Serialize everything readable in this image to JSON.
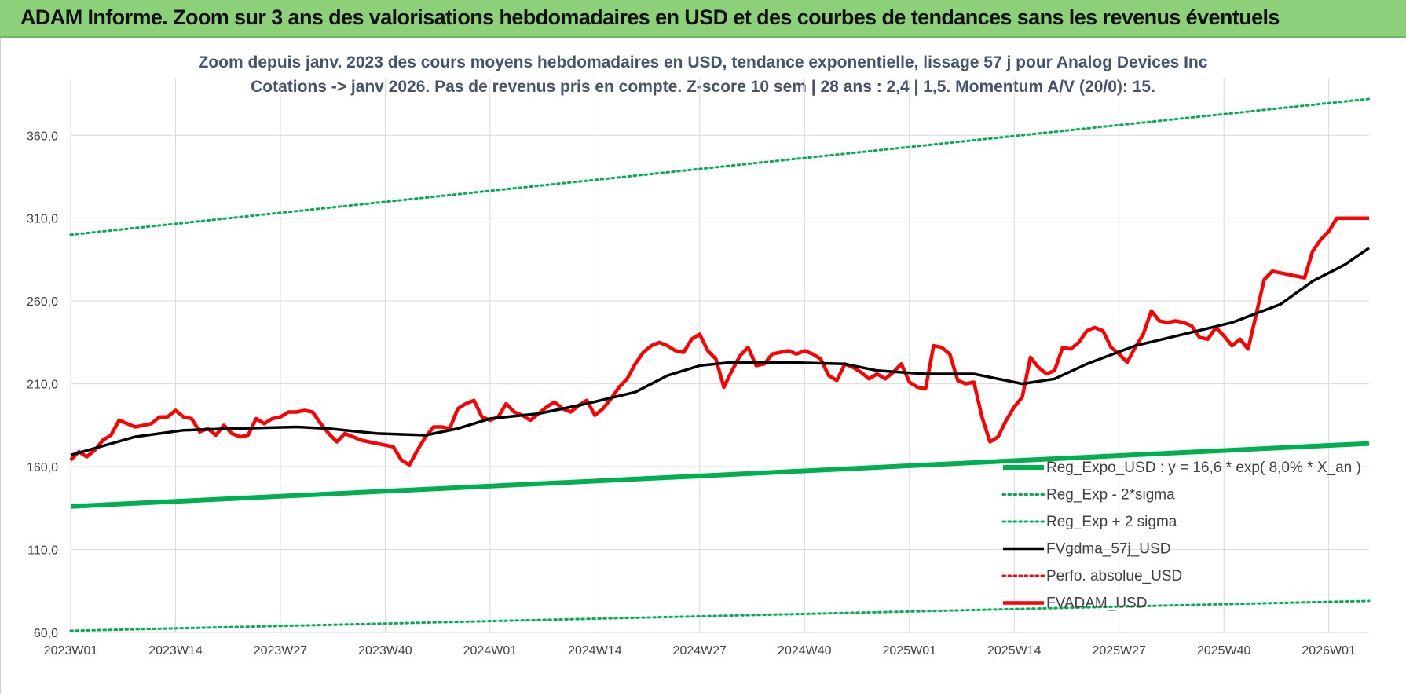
{
  "banner": {
    "title": "ADAM Informe. Zoom sur 3 ans des valorisations hebdomadaires en USD et des courbes de tendances sans les revenus éventuels"
  },
  "colors": {
    "banner": "#8dd07a",
    "reg_expo": "#00b050",
    "fv_adam": "#ff0000",
    "fvgdma": "#000000",
    "grid": "#d9d9d9"
  },
  "chart_data": {
    "type": "line",
    "title_line1": "Zoom depuis janv. 2023 des cours moyens hebdomadaires en USD, tendance exponentielle, lissage 57 j pour Analog Devices Inc",
    "title_line2": "Cotations -> janv 2026. Pas de revenus pris en compte. Z-score 10 sem | 28 ans : 2,4 | 1,5. Momentum A/V (20/0): 15.",
    "xlabel": "",
    "ylabel": "",
    "ylim": [
      60,
      390
    ],
    "y_ticks": [
      "60,0",
      "110,0",
      "160,0",
      "210,0",
      "260,0",
      "310,0",
      "360,0"
    ],
    "y_tick_values": [
      60,
      110,
      160,
      210,
      260,
      310,
      360
    ],
    "x_ticks": [
      "2023W01",
      "2023W14",
      "2023W27",
      "2023W40",
      "2024W01",
      "2024W14",
      "2024W27",
      "2024W40",
      "2025W01",
      "2025W14",
      "2025W27",
      "2025W40",
      "2026W01"
    ],
    "x_tick_index": [
      0,
      13,
      26,
      39,
      52,
      65,
      78,
      91,
      104,
      117,
      130,
      143,
      156
    ],
    "x_count": 162,
    "legend_position": "bottom-right",
    "series": [
      {
        "name": "Reg_Expo_USD : y = 16,6 * exp( 8,0% *  X_an )",
        "style": "solid-thick",
        "color": "#00b050",
        "x": [
          0,
          161
        ],
        "values": [
          136,
          174
        ]
      },
      {
        "name": "Reg_Exp - 2*sigma",
        "style": "dotted",
        "color": "#00b050",
        "x": [
          0,
          161
        ],
        "values": [
          61,
          79
        ]
      },
      {
        "name": "Reg_Exp + 2 sigma",
        "style": "dotted",
        "color": "#00b050",
        "x": [
          0,
          161
        ],
        "values": [
          300,
          382
        ]
      },
      {
        "name": "FVgdma_57j_USD",
        "style": "solid",
        "color": "#000000",
        "x": [
          0,
          8,
          14,
          20,
          28,
          32,
          38,
          44,
          48,
          52,
          58,
          64,
          70,
          74,
          78,
          82,
          88,
          96,
          100,
          106,
          112,
          116,
          118,
          122,
          126,
          132,
          138,
          144,
          150,
          154,
          158,
          161
        ],
        "values": [
          167,
          178,
          182,
          183,
          184,
          183,
          180,
          179,
          183,
          189,
          192,
          198,
          205,
          215,
          221,
          223,
          223,
          222,
          218,
          216,
          216,
          212,
          210,
          213,
          222,
          233,
          240,
          247,
          258,
          272,
          282,
          292
        ]
      },
      {
        "name": "Perfo. absolue_USD",
        "style": "dotted",
        "color": "#ff0000",
        "x": [],
        "values": []
      },
      {
        "name": "FVADAM_USD",
        "style": "solid-thick",
        "color": "#ff0000",
        "x": [
          0,
          1,
          2,
          3,
          4,
          5,
          6,
          7,
          8,
          9,
          10,
          11,
          12,
          13,
          14,
          15,
          16,
          17,
          18,
          19,
          20,
          21,
          22,
          23,
          24,
          25,
          26,
          27,
          28,
          29,
          30,
          31,
          32,
          33,
          34,
          35,
          36,
          37,
          38,
          39,
          40,
          41,
          42,
          43,
          44,
          45,
          46,
          47,
          48,
          49,
          50,
          51,
          52,
          53,
          54,
          55,
          56,
          57,
          58,
          59,
          60,
          61,
          62,
          63,
          64,
          65,
          66,
          67,
          68,
          69,
          70,
          71,
          72,
          73,
          74,
          75,
          76,
          77,
          78,
          79,
          80,
          81,
          82,
          83,
          84,
          85,
          86,
          87,
          88,
          89,
          90,
          91,
          92,
          93,
          94,
          95,
          96,
          97,
          98,
          99,
          100,
          101,
          102,
          103,
          104,
          105,
          106,
          107,
          108,
          109,
          110,
          111,
          112,
          113,
          114,
          115,
          116,
          117,
          118,
          119,
          120,
          121,
          122,
          123,
          124,
          125,
          126,
          127,
          128,
          129,
          130,
          131,
          132,
          133,
          134,
          135,
          136,
          137,
          138,
          139,
          140,
          141,
          142,
          143,
          144,
          145,
          146,
          147,
          148,
          149,
          150,
          151,
          152,
          153,
          154,
          155,
          156,
          157,
          158,
          159,
          160,
          161
        ],
        "values": [
          164,
          169,
          166,
          170,
          176,
          179,
          188,
          186,
          184,
          185,
          186,
          190,
          190,
          194,
          190,
          189,
          181,
          183,
          179,
          185,
          180,
          178,
          179,
          189,
          186,
          189,
          190,
          193,
          193,
          194,
          193,
          186,
          180,
          175,
          180,
          178,
          176,
          175,
          174,
          173,
          172,
          164,
          161,
          170,
          178,
          184,
          184,
          183,
          195,
          198,
          200,
          190,
          188,
          190,
          198,
          193,
          191,
          188,
          192,
          196,
          199,
          195,
          193,
          197,
          200,
          191,
          195,
          201,
          208,
          213,
          222,
          229,
          233,
          235,
          233,
          230,
          229,
          237,
          240,
          230,
          225,
          208,
          218,
          227,
          232,
          221,
          222,
          228,
          229,
          230,
          228,
          230,
          228,
          225,
          215,
          212,
          222,
          220,
          217,
          213,
          216,
          213,
          217,
          222,
          211,
          208,
          207,
          233,
          232,
          228,
          212,
          210,
          211,
          190,
          175,
          178,
          188,
          196,
          202,
          226,
          220,
          216,
          218,
          232,
          231,
          235,
          242,
          244,
          242,
          232,
          228,
          223,
          232,
          240,
          254,
          248,
          247,
          248,
          247,
          245,
          238,
          237,
          244,
          239,
          233,
          237,
          231,
          252,
          273,
          278,
          277,
          276,
          275,
          274,
          290,
          297,
          302,
          310,
          310,
          310,
          310,
          310
        ]
      }
    ]
  }
}
